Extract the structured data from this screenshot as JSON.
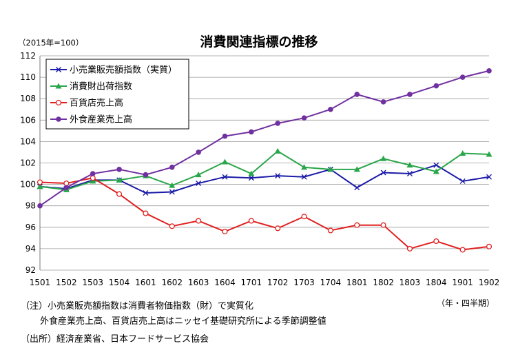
{
  "chart_data": {
    "type": "line",
    "title": "消費関連指標の推移",
    "unit_label": "（2015年=100）",
    "x_unit_label": "（年・四半期）",
    "categories": [
      "1501",
      "1502",
      "1503",
      "1504",
      "1601",
      "1602",
      "1603",
      "1604",
      "1701",
      "1702",
      "1703",
      "1704",
      "1801",
      "1802",
      "1803",
      "1804",
      "1901",
      "1902"
    ],
    "yticks": [
      "92",
      "94",
      "96",
      "98",
      "100",
      "102",
      "104",
      "106",
      "108",
      "110",
      "112"
    ],
    "ylim": [
      92,
      112
    ],
    "grid": true,
    "legend_position": "top-left",
    "series": [
      {
        "name": "小売業販売額指数（実質）",
        "color": "#1a1aa8",
        "marker": "x",
        "values": [
          99.8,
          99.6,
          100.4,
          100.4,
          99.2,
          99.3,
          100.1,
          100.7,
          100.6,
          100.8,
          100.7,
          101.4,
          99.7,
          101.1,
          101.0,
          101.8,
          100.3,
          100.7
        ]
      },
      {
        "name": "消費財出荷指数",
        "color": "#2aa64a",
        "marker": "triangle",
        "values": [
          99.8,
          99.5,
          100.3,
          100.4,
          100.8,
          99.9,
          100.9,
          102.1,
          101.0,
          103.1,
          101.6,
          101.4,
          101.4,
          102.4,
          101.8,
          101.2,
          102.9,
          102.8
        ]
      },
      {
        "name": "百貨店売上高",
        "color": "#e02020",
        "marker": "open-circle",
        "values": [
          100.2,
          100.1,
          100.6,
          99.1,
          97.3,
          96.1,
          96.6,
          95.6,
          96.6,
          95.9,
          97.0,
          95.7,
          96.2,
          96.2,
          94.0,
          94.7,
          93.9,
          94.2
        ]
      },
      {
        "name": "外食産業売上高",
        "color": "#7030a0",
        "marker": "circle",
        "values": [
          98.0,
          99.7,
          101.0,
          101.4,
          100.9,
          101.6,
          103.0,
          104.5,
          104.9,
          105.7,
          106.2,
          107.0,
          108.4,
          107.7,
          108.4,
          109.2,
          110.0,
          110.6
        ]
      }
    ]
  },
  "notes": [
    "（注）小売業販売額指数は消費者物価指数（財）で実質化",
    "外食産業売上高、百貨店売上高はニッセイ基礎研究所による季節調整値",
    "（出所）経済産業省、日本フードサービス協会"
  ]
}
